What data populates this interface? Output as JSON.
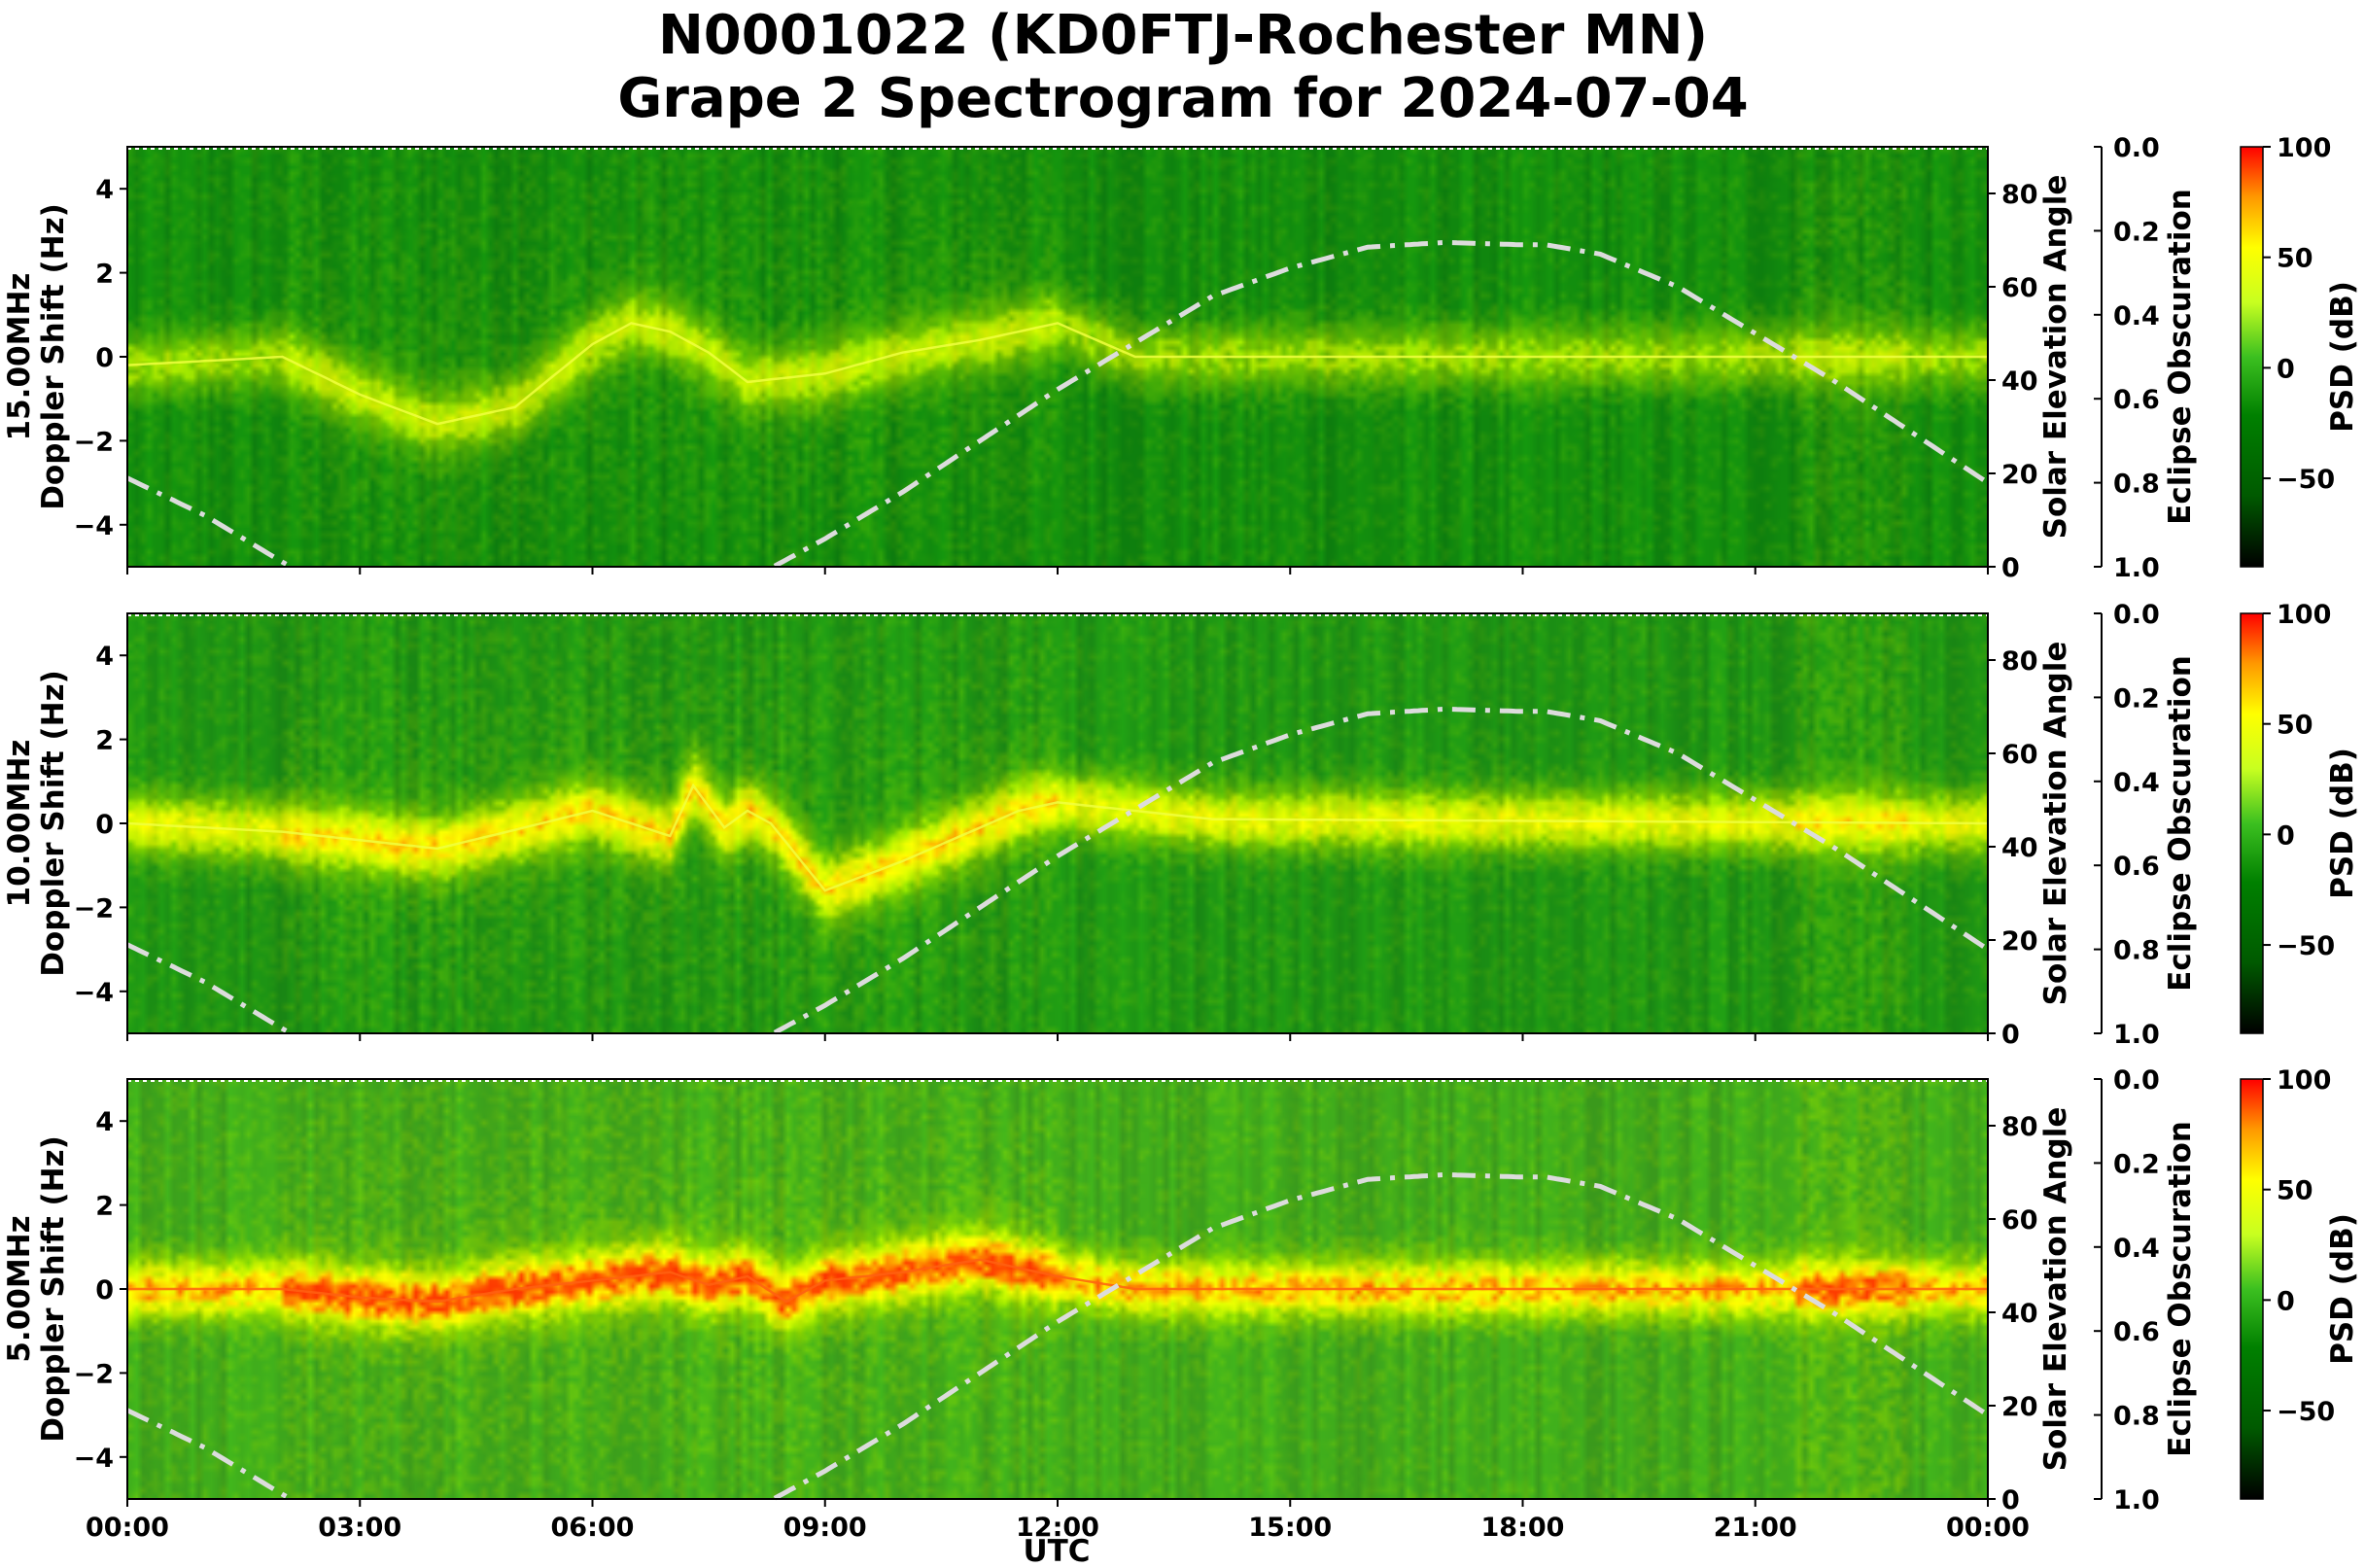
{
  "chart_data": {
    "type": "heatmap",
    "title_line1": "N0001022 (KD0FTJ-Rochester MN)",
    "title_line2": "Grape 2 Spectrogram for 2024-07-04",
    "xlabel": "UTC",
    "x_ticks": [
      "00:00",
      "03:00",
      "06:00",
      "09:00",
      "12:00",
      "15:00",
      "18:00",
      "21:00",
      "00:00"
    ],
    "xlim_hours": [
      0,
      24
    ],
    "ylim_doppler": [
      -5,
      5
    ],
    "y_ticks": [
      "−4",
      "−2",
      "0",
      "2",
      "4"
    ],
    "solar_axis_label": "Solar Elevation Angle",
    "solar_ticks": [
      "0",
      "20",
      "40",
      "60",
      "80"
    ],
    "solar_ylim": [
      0,
      90
    ],
    "eclipse_axis_label": "Eclipse Obscuration",
    "eclipse_ticks": [
      "0.0",
      "0.2",
      "0.4",
      "0.6",
      "0.8",
      "1.0"
    ],
    "eclipse_ylim": [
      0,
      1
    ],
    "colorbar_label": "PSD (dB)",
    "colorbar_ticks": [
      "100",
      "50",
      "0",
      "−50"
    ],
    "colorbar_range": [
      -90,
      100
    ],
    "colormap": [
      "#000000",
      "#006400",
      "#008000",
      "#32cd32",
      "#adff2f",
      "#ffff00",
      "#ffa500",
      "#ff0000"
    ],
    "solar_curve_color": "#dcdcdc",
    "solar_elevation": {
      "hours": [
        0,
        1,
        2,
        3,
        4,
        5,
        6,
        7,
        8,
        9,
        10,
        11,
        12,
        13,
        14,
        15,
        16,
        17,
        18,
        18.3,
        19,
        20,
        21,
        22,
        23,
        24
      ],
      "degrees": [
        19,
        11,
        1,
        -8,
        -15,
        -19,
        -18,
        -12,
        -3,
        6,
        16,
        27,
        38,
        48,
        58,
        64,
        68.5,
        69.5,
        69,
        69,
        67,
        60,
        50,
        40,
        29,
        18
      ]
    },
    "panels": [
      {
        "ylabel_line1": "15.00MHz",
        "ylabel_line2": "Doppler Shift (Hz)",
        "base_color": "#118a0e",
        "noise_level": 0.35,
        "signal_trace": {
          "hours": [
            0,
            1,
            2,
            3,
            4,
            5,
            6,
            6.5,
            7,
            7.5,
            8,
            9,
            10,
            11,
            12,
            13,
            14,
            24
          ],
          "doppler": [
            -0.2,
            -0.1,
            0,
            -0.9,
            -1.6,
            -1.2,
            0.3,
            0.8,
            0.6,
            0.1,
            -0.6,
            -0.4,
            0.1,
            0.4,
            0.8,
            0,
            0,
            0
          ],
          "strength": 0.55
        },
        "solar_ticks_visible": true
      },
      {
        "ylabel_line1": "10.00MHz",
        "ylabel_line2": "Doppler Shift (Hz)",
        "base_color": "#1d9414",
        "noise_level": 0.4,
        "signal_trace": {
          "hours": [
            0,
            1,
            2,
            3,
            4,
            4.9,
            6,
            7,
            7.3,
            7.7,
            8,
            8.3,
            9,
            10,
            11.5,
            12,
            13,
            14,
            24
          ],
          "doppler": [
            0,
            -0.1,
            -0.2,
            -0.4,
            -0.6,
            -0.2,
            0.3,
            -0.3,
            0.9,
            -0.1,
            0.3,
            0,
            -1.6,
            -0.9,
            0.3,
            0.5,
            0.3,
            0.1,
            0
          ],
          "strength": 0.8
        },
        "solar_ticks_visible": true
      },
      {
        "ylabel_line1": "5.00MHz",
        "ylabel_line2": "Doppler Shift (Hz)",
        "base_color": "#3ea81c",
        "noise_level": 0.55,
        "signal_trace": {
          "hours": [
            0,
            1,
            2,
            3,
            4,
            5,
            6,
            7,
            7.5,
            8,
            8.5,
            9,
            10,
            11,
            12,
            13,
            14,
            24
          ],
          "doppler": [
            0,
            0,
            0,
            -0.2,
            -0.3,
            0,
            0.2,
            0.4,
            0.1,
            0.3,
            -0.3,
            0.2,
            0.4,
            0.7,
            0.3,
            0,
            0,
            0
          ],
          "strength": 1.0
        },
        "solar_ticks_visible": true
      }
    ]
  }
}
